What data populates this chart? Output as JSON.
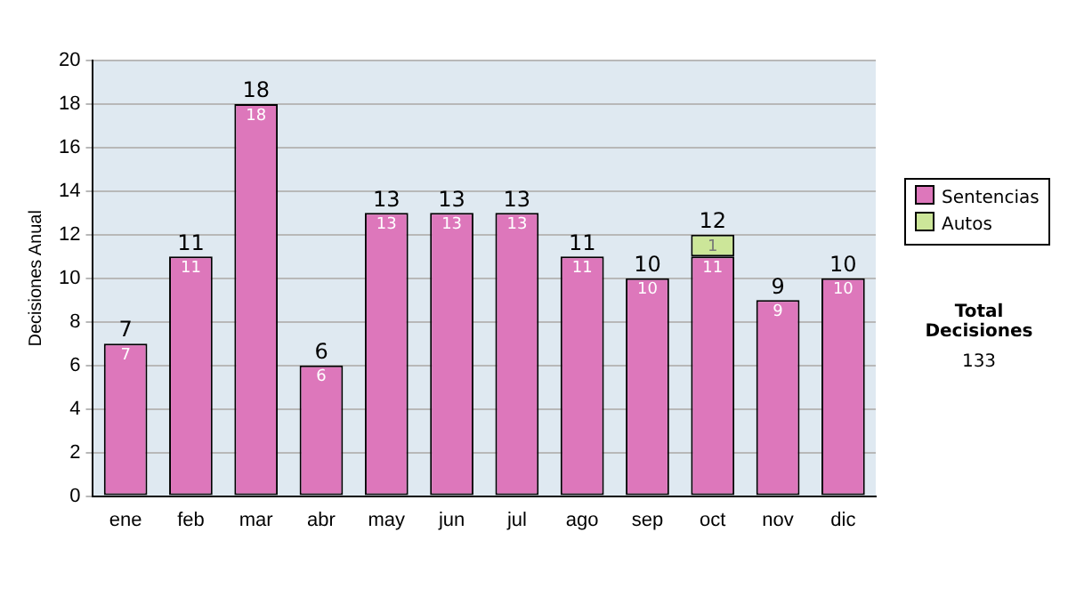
{
  "chart_data": {
    "type": "bar",
    "stacked": true,
    "ylabel": "Decisiones Anual",
    "categories": [
      "ene",
      "feb",
      "mar",
      "abr",
      "may",
      "jun",
      "jul",
      "ago",
      "sep",
      "oct",
      "nov",
      "dic"
    ],
    "series": [
      {
        "name": "Sentencias",
        "color": "#dd77bb",
        "values": [
          7,
          11,
          18,
          6,
          13,
          13,
          13,
          11,
          10,
          11,
          9,
          10
        ]
      },
      {
        "name": "Autos",
        "color": "#cce699",
        "values": [
          null,
          null,
          null,
          null,
          null,
          null,
          null,
          null,
          null,
          1,
          null,
          null
        ]
      }
    ],
    "totals": [
      "7",
      "11",
      "18",
      "6",
      "13",
      "13",
      "13",
      "11",
      "10",
      "12",
      "9",
      "10"
    ],
    "ylim": [
      0,
      20
    ],
    "yticks": [
      0,
      2,
      4,
      6,
      8,
      10,
      12,
      14,
      16,
      18,
      20
    ],
    "grid": "y",
    "legend": "right",
    "data_labels": true,
    "annotations": [
      "Total Decisiones",
      "133"
    ]
  }
}
